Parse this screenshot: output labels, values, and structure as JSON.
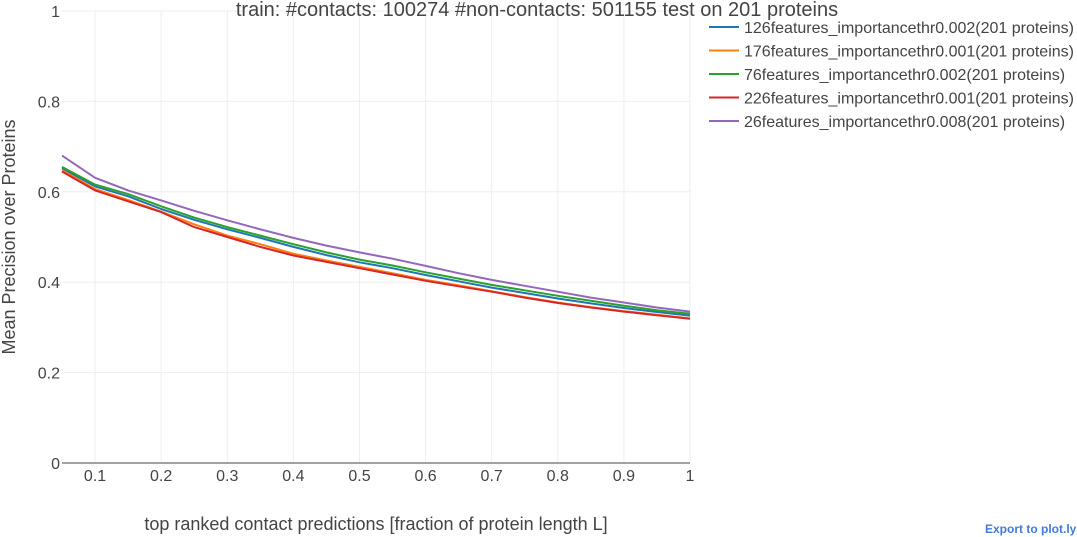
{
  "chart_data": {
    "type": "line",
    "title": "train: #contacts: 100274 #non-contacts: 501155 test on 201 proteins",
    "xlabel": "top ranked contact predictions [fraction of protein length L]",
    "ylabel": "Mean Precision over Proteins",
    "xlim": [
      0.05,
      1.0
    ],
    "ylim": [
      0,
      1.0
    ],
    "x_ticks": [
      0.1,
      0.2,
      0.3,
      0.4,
      0.5,
      0.6,
      0.7,
      0.8,
      0.9,
      1
    ],
    "x_tick_labels": [
      "0.1",
      "0.2",
      "0.3",
      "0.4",
      "0.5",
      "0.6",
      "0.7",
      "0.8",
      "0.9",
      "1"
    ],
    "y_ticks": [
      0,
      0.2,
      0.4,
      0.6,
      0.8,
      1
    ],
    "y_tick_labels": [
      "0",
      "0.2",
      "0.4",
      "0.6",
      "0.8",
      "1"
    ],
    "grid": true,
    "legend_position": "top-right",
    "x": [
      0.05,
      0.1,
      0.15,
      0.2,
      0.25,
      0.3,
      0.35,
      0.4,
      0.45,
      0.5,
      0.55,
      0.6,
      0.65,
      0.7,
      0.75,
      0.8,
      0.85,
      0.9,
      0.95,
      1.0
    ],
    "series": [
      {
        "name": "126features_importancethr0.002(201 proteins)",
        "color": "#1f77b4",
        "values": [
          0.652,
          0.612,
          0.59,
          0.562,
          0.538,
          0.517,
          0.498,
          0.478,
          0.46,
          0.444,
          0.431,
          0.416,
          0.402,
          0.388,
          0.376,
          0.364,
          0.353,
          0.343,
          0.334,
          0.326
        ]
      },
      {
        "name": "176features_importancethr0.001(201 proteins)",
        "color": "#ff7f0e",
        "values": [
          0.648,
          0.606,
          0.582,
          0.556,
          0.528,
          0.503,
          0.484,
          0.463,
          0.448,
          0.434,
          0.42,
          0.405,
          0.393,
          0.38,
          0.367,
          0.355,
          0.345,
          0.336,
          0.328,
          0.32
        ]
      },
      {
        "name": "76features_importancethr0.002(201 proteins)",
        "color": "#2ca02c",
        "values": [
          0.655,
          0.616,
          0.595,
          0.568,
          0.543,
          0.522,
          0.503,
          0.484,
          0.466,
          0.45,
          0.437,
          0.422,
          0.408,
          0.394,
          0.382,
          0.37,
          0.359,
          0.348,
          0.338,
          0.33
        ]
      },
      {
        "name": "226features_importancethr0.001(201 proteins)",
        "color": "#d62728",
        "values": [
          0.645,
          0.603,
          0.579,
          0.555,
          0.522,
          0.5,
          0.478,
          0.459,
          0.445,
          0.431,
          0.417,
          0.403,
          0.391,
          0.379,
          0.366,
          0.354,
          0.344,
          0.335,
          0.327,
          0.319
        ]
      },
      {
        "name": "26features_importancethr0.008(201 proteins)",
        "color": "#9467bd",
        "values": [
          0.68,
          0.631,
          0.603,
          0.581,
          0.558,
          0.537,
          0.517,
          0.498,
          0.481,
          0.466,
          0.452,
          0.436,
          0.42,
          0.405,
          0.392,
          0.379,
          0.366,
          0.355,
          0.344,
          0.335
        ]
      }
    ]
  },
  "export_label": "Export to plot.ly"
}
